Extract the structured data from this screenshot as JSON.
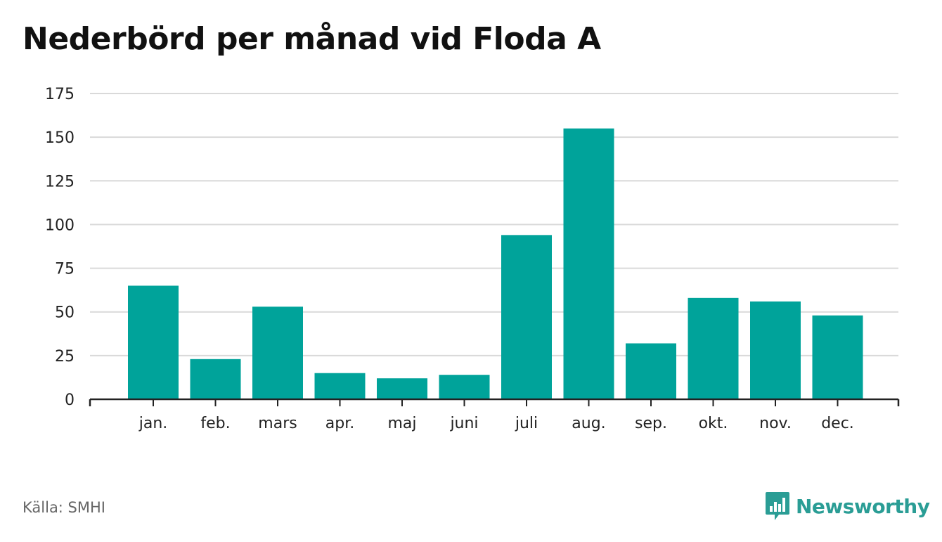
{
  "title": "Nederbörd per månad vid Floda A",
  "source": "Källa: SMHI",
  "brand": {
    "name": "Newsworthy",
    "color": "#2a9d95",
    "icon": "bar-chart-speech-bubble-icon"
  },
  "chart_data": {
    "type": "bar",
    "title": "Nederbörd per månad vid Floda A",
    "xlabel": "",
    "ylabel": "",
    "categories": [
      "jan.",
      "feb.",
      "mars",
      "apr.",
      "maj",
      "juni",
      "juli",
      "aug.",
      "sep.",
      "okt.",
      "nov.",
      "dec."
    ],
    "values": [
      65,
      23,
      53,
      15,
      12,
      14,
      94,
      155,
      32,
      58,
      56,
      48
    ],
    "ylim": [
      0,
      175
    ],
    "yticks": [
      0,
      25,
      50,
      75,
      100,
      125,
      150,
      175
    ],
    "bar_color": "#00a39a",
    "grid": true
  }
}
